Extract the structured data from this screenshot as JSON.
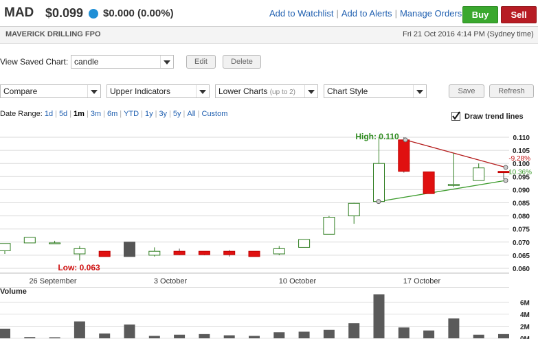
{
  "header": {
    "ticker": "MAD",
    "price": "$0.099",
    "change": "$0.000 (0.00%)",
    "status_color": "#1f8fd6",
    "links": [
      "Add to Watchlist",
      "Add to Alerts",
      "Manage Orders"
    ],
    "buy_label": "Buy",
    "sell_label": "Sell"
  },
  "info": {
    "company": "MAVERICK DRILLING FPO",
    "datetime": "Fri 21 Oct 2016 4:14 PM (Sydney time)"
  },
  "saved_chart": {
    "label": "View Saved Chart:",
    "value": "candle",
    "edit_label": "Edit",
    "delete_label": "Delete"
  },
  "toolbar": {
    "compare": "Compare",
    "upper_indicators": "Upper Indicators",
    "lower_charts": "Lower Charts",
    "lower_charts_note": "(up to 2)",
    "chart_style": "Chart Style",
    "save_label": "Save",
    "refresh_label": "Refresh"
  },
  "date_range": {
    "label": "Date Range:",
    "options": [
      "1d",
      "5d",
      "1m",
      "3m",
      "6m",
      "YTD",
      "1y",
      "3y",
      "5y",
      "All",
      "Custom"
    ],
    "selected": "1m"
  },
  "trend": {
    "label": "Draw trend lines",
    "checked": true
  },
  "chart_data": {
    "type": "candlestick",
    "y_ticks": [
      "0.110",
      "0.105",
      "0.100",
      "0.095",
      "0.090",
      "0.085",
      "0.080",
      "0.075",
      "0.070",
      "0.065",
      "0.060"
    ],
    "x_labels": [
      "26 September",
      "3 October",
      "10 October",
      "17 October"
    ],
    "high_label": "High: 0.110",
    "low_label": "Low: 0.063",
    "trend_pct_red": "-9.28%",
    "trend_pct_green": "10.36%",
    "up_color": "#2e7d1f",
    "down_color": "#e01010",
    "candles": [
      {
        "open": 0.0667,
        "high": 0.0695,
        "low": 0.0655,
        "close": 0.0695
      },
      {
        "open": 0.0697,
        "high": 0.0718,
        "low": 0.0697,
        "close": 0.0718
      },
      {
        "open": 0.0697,
        "high": 0.0705,
        "low": 0.0697,
        "close": 0.0697
      },
      {
        "open": 0.0655,
        "high": 0.0685,
        "low": 0.063,
        "close": 0.0675
      },
      {
        "open": 0.0665,
        "high": 0.0665,
        "low": 0.0645,
        "close": 0.0645
      },
      {
        "open": 0.07,
        "high": 0.07,
        "low": 0.0645,
        "close": 0.0645
      },
      {
        "open": 0.065,
        "high": 0.068,
        "low": 0.0645,
        "close": 0.0665
      },
      {
        "open": 0.0665,
        "high": 0.0675,
        "low": 0.065,
        "close": 0.0652
      },
      {
        "open": 0.0665,
        "high": 0.0665,
        "low": 0.065,
        "close": 0.0652
      },
      {
        "open": 0.0665,
        "high": 0.067,
        "low": 0.0645,
        "close": 0.0652
      },
      {
        "open": 0.0665,
        "high": 0.0665,
        "low": 0.0645,
        "close": 0.0645
      },
      {
        "open": 0.0655,
        "high": 0.0685,
        "low": 0.065,
        "close": 0.0675
      },
      {
        "open": 0.068,
        "high": 0.071,
        "low": 0.068,
        "close": 0.071
      },
      {
        "open": 0.073,
        "high": 0.08,
        "low": 0.073,
        "close": 0.0795
      },
      {
        "open": 0.08,
        "high": 0.085,
        "low": 0.077,
        "close": 0.0848
      },
      {
        "open": 0.0855,
        "high": 0.11,
        "low": 0.085,
        "close": 0.1
      },
      {
        "open": 0.109,
        "high": 0.11,
        "low": 0.0965,
        "close": 0.097
      },
      {
        "open": 0.0968,
        "high": 0.0968,
        "low": 0.0885,
        "close": 0.0885
      },
      {
        "open": 0.092,
        "high": 0.104,
        "low": 0.091,
        "close": 0.092
      },
      {
        "open": 0.0935,
        "high": 0.1,
        "low": 0.0935,
        "close": 0.0983
      },
      {
        "open": 0.097,
        "high": 0.097,
        "low": 0.094,
        "close": 0.0965
      }
    ],
    "volume": {
      "label": "Volume",
      "ticks": [
        "6M",
        "4M",
        "2M",
        "0M"
      ],
      "values": [
        1.6,
        0.2,
        0.15,
        2.8,
        0.8,
        2.3,
        0.4,
        0.6,
        0.7,
        0.5,
        0.4,
        1.0,
        1.1,
        1.4,
        2.5,
        7.3,
        1.8,
        1.3,
        3.3,
        0.6,
        0.7
      ]
    }
  }
}
